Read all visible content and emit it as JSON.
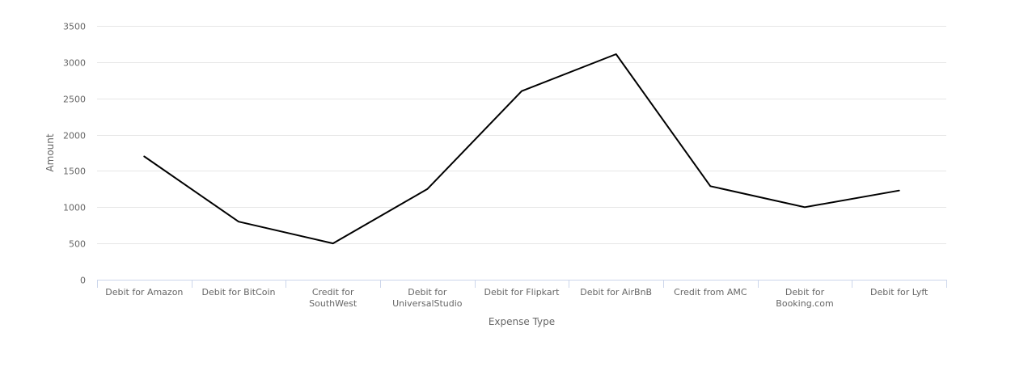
{
  "chart_data": {
    "type": "line",
    "title": "",
    "xlabel": "Expense Type",
    "ylabel": "Amount",
    "ylim": [
      0,
      3500
    ],
    "yticks": [
      "0",
      "500",
      "1000",
      "1500",
      "2000",
      "2500",
      "3000",
      "3500"
    ],
    "categories": [
      [
        "Debit for Amazon"
      ],
      [
        "Debit for BitCoin"
      ],
      [
        "Credit for",
        "SouthWest"
      ],
      [
        "Debit for",
        "UniversalStudio"
      ],
      [
        "Debit for Flipkart"
      ],
      [
        "Debit for AirBnB"
      ],
      [
        "Credit from AMC"
      ],
      [
        "Debit for",
        "Booking.com"
      ],
      [
        "Debit for Lyft"
      ]
    ],
    "series": [
      {
        "values": [
          1700,
          800,
          500,
          1250,
          2600,
          3110,
          1290,
          1000,
          1230
        ],
        "color": "#000000"
      }
    ],
    "grid": true,
    "legend": "none"
  }
}
